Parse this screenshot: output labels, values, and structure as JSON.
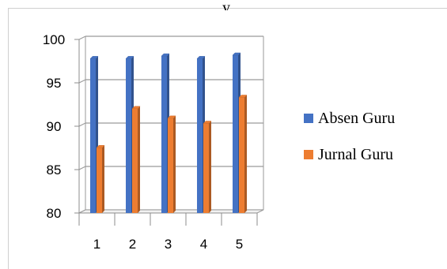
{
  "caption": "y",
  "chart_data": {
    "type": "bar",
    "categories": [
      "1",
      "2",
      "3",
      "4",
      "5"
    ],
    "series": [
      {
        "name": "Absen Guru",
        "values": [
          97.6,
          97.6,
          97.9,
          97.6,
          98.0
        ],
        "color": "#4472C4"
      },
      {
        "name": "Jurnal Guru",
        "values": [
          87.7,
          92.2,
          91.1,
          90.5,
          93.5
        ],
        "color": "#ED7D31"
      }
    ],
    "y_ticks": [
      "80",
      "85",
      "90",
      "95",
      "100"
    ],
    "ylim": [
      80,
      100
    ],
    "grid": true,
    "legend_position": "right",
    "style": "3d-column"
  }
}
